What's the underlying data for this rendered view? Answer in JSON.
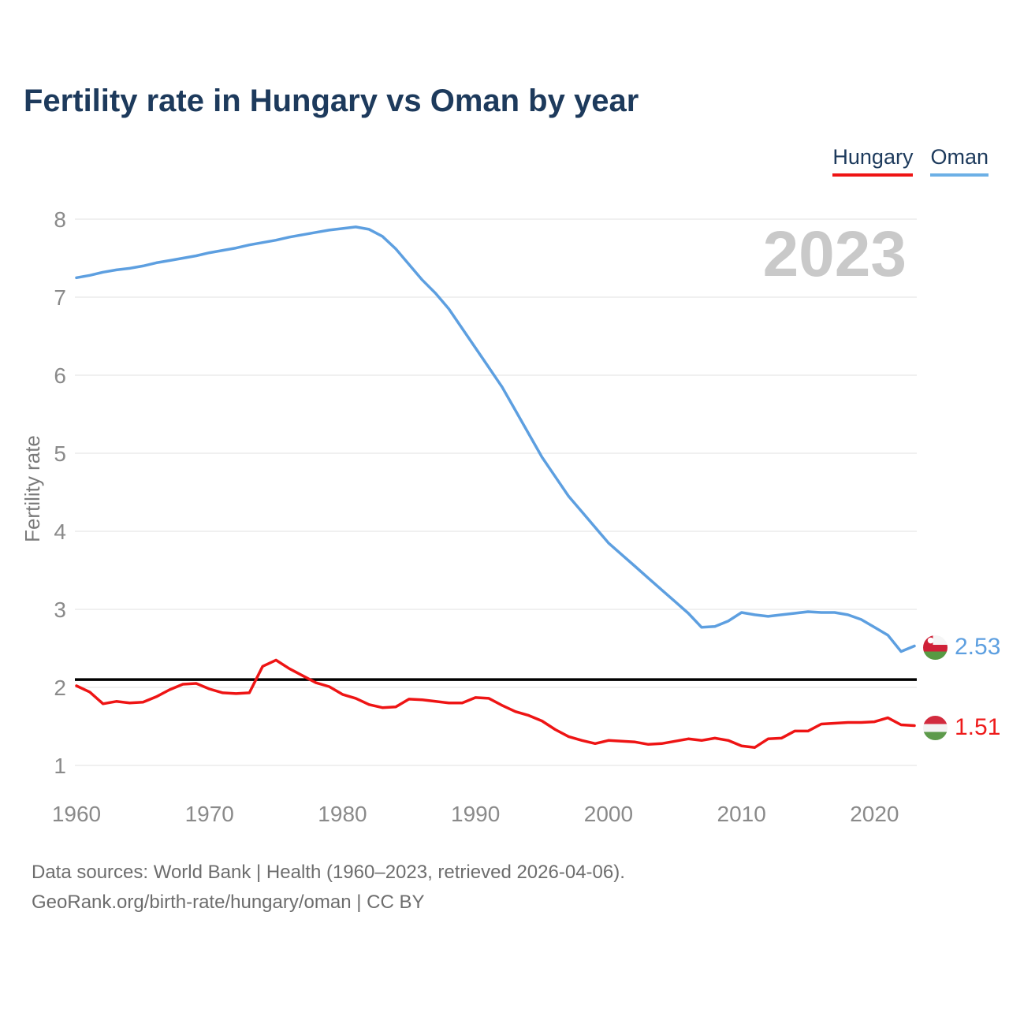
{
  "page": {
    "title": "Fertility rate in Hungary vs Oman by year",
    "watermark": "2023",
    "footer_line1": "Data sources: World Bank | Health (1960–2023, retrieved 2026-04-06).",
    "footer_line2": "GeoRank.org/birth-rate/hungary/oman | CC BY"
  },
  "legend": {
    "items": [
      {
        "label": "Hungary",
        "color": "#ee1414"
      },
      {
        "label": "Oman",
        "color": "#6cb0e6"
      }
    ]
  },
  "end_labels": {
    "oman": {
      "value": "2.53",
      "color": "#5d9fe0",
      "flag": "oman-flag"
    },
    "hungary": {
      "value": "1.51",
      "color": "#ee1b1b",
      "flag": "hungary-flag"
    }
  },
  "chart_data": {
    "type": "line",
    "title": "Fertility rate in Hungary vs Oman by year",
    "xlabel": "",
    "ylabel": "Fertility rate",
    "ylim": [
      1,
      8
    ],
    "yticks": [
      1,
      2,
      3,
      4,
      5,
      6,
      7,
      8
    ],
    "xticks": [
      1960,
      1970,
      1980,
      1990,
      2000,
      2010,
      2020
    ],
    "grid": "horizontal",
    "legend_position": "top-right",
    "reference_line": {
      "value": 2.1,
      "color": "#000000"
    },
    "x": [
      1960,
      1961,
      1962,
      1963,
      1964,
      1965,
      1966,
      1967,
      1968,
      1969,
      1970,
      1971,
      1972,
      1973,
      1974,
      1975,
      1976,
      1977,
      1978,
      1979,
      1980,
      1981,
      1982,
      1983,
      1984,
      1985,
      1986,
      1987,
      1988,
      1989,
      1990,
      1991,
      1992,
      1993,
      1994,
      1995,
      1996,
      1997,
      1998,
      1999,
      2000,
      2001,
      2002,
      2003,
      2004,
      2005,
      2006,
      2007,
      2008,
      2009,
      2010,
      2011,
      2012,
      2013,
      2014,
      2015,
      2016,
      2017,
      2018,
      2019,
      2020,
      2021,
      2022,
      2023
    ],
    "series": [
      {
        "name": "Hungary",
        "color": "#ee1414",
        "end_value": 1.51,
        "values": [
          2.02,
          1.94,
          1.79,
          1.82,
          1.8,
          1.81,
          1.88,
          1.97,
          2.04,
          2.05,
          1.98,
          1.93,
          1.92,
          1.93,
          2.27,
          2.35,
          2.24,
          2.15,
          2.06,
          2.01,
          1.91,
          1.86,
          1.78,
          1.74,
          1.75,
          1.85,
          1.84,
          1.82,
          1.8,
          1.8,
          1.87,
          1.86,
          1.77,
          1.69,
          1.64,
          1.57,
          1.46,
          1.37,
          1.32,
          1.28,
          1.32,
          1.31,
          1.3,
          1.27,
          1.28,
          1.31,
          1.34,
          1.32,
          1.35,
          1.32,
          1.25,
          1.23,
          1.34,
          1.35,
          1.44,
          1.44,
          1.53,
          1.54,
          1.55,
          1.55,
          1.56,
          1.61,
          1.52,
          1.51
        ]
      },
      {
        "name": "Oman",
        "color": "#5d9fe0",
        "end_value": 2.53,
        "values": [
          7.25,
          7.28,
          7.32,
          7.35,
          7.37,
          7.4,
          7.44,
          7.47,
          7.5,
          7.53,
          7.57,
          7.6,
          7.63,
          7.67,
          7.7,
          7.73,
          7.77,
          7.8,
          7.83,
          7.86,
          7.88,
          7.9,
          7.87,
          7.78,
          7.62,
          7.42,
          7.22,
          7.05,
          6.85,
          6.6,
          6.35,
          6.1,
          5.85,
          5.55,
          5.25,
          4.95,
          4.7,
          4.45,
          4.25,
          4.05,
          3.85,
          3.7,
          3.55,
          3.4,
          3.25,
          3.1,
          2.95,
          2.77,
          2.78,
          2.85,
          2.96,
          2.93,
          2.91,
          2.93,
          2.95,
          2.97,
          2.96,
          2.96,
          2.93,
          2.87,
          2.77,
          2.67,
          2.46,
          2.53
        ]
      }
    ]
  }
}
